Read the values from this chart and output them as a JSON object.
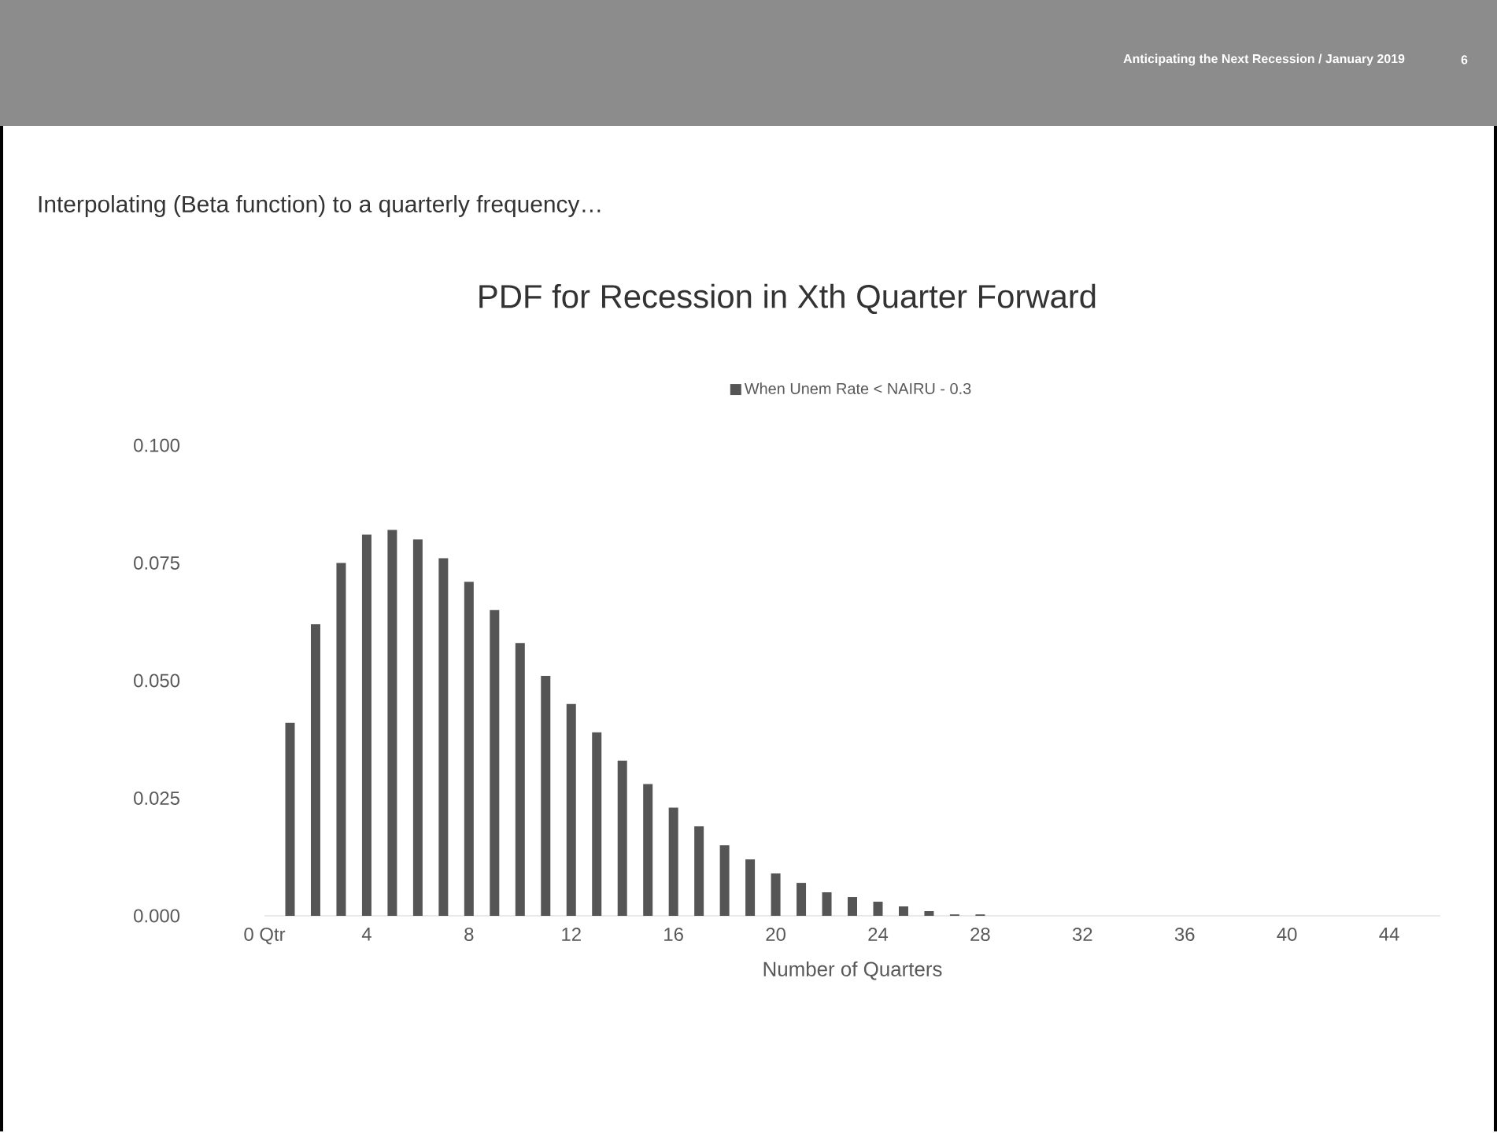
{
  "chart_data": {
    "type": "bar",
    "title": "PDF for Recession in Xth Quarter Forward",
    "subtitle": "Interpolating (Beta function) to a quarterly frequency…",
    "annotations": [
      "Anticipating the Next Recession / January 2019",
      "6"
    ],
    "xlabel": "Number of Quarters",
    "x": [
      1,
      2,
      3,
      4,
      5,
      6,
      7,
      8,
      9,
      10,
      11,
      12,
      13,
      14,
      15,
      16,
      17,
      18,
      19,
      20,
      21,
      22,
      23,
      24,
      25,
      26,
      27,
      28
    ],
    "series": [
      {
        "name": "When Unem Rate < NAIRU - 0.3",
        "color": "#555555",
        "values": [
          0.041,
          0.062,
          0.075,
          0.081,
          0.082,
          0.08,
          0.076,
          0.071,
          0.065,
          0.058,
          0.051,
          0.045,
          0.039,
          0.033,
          0.028,
          0.023,
          0.019,
          0.015,
          0.012,
          0.009,
          0.007,
          0.005,
          0.004,
          0.003,
          0.002,
          0.001,
          0.0003,
          0.0003
        ]
      }
    ],
    "xlim": [
      0,
      46
    ],
    "ylim": [
      0,
      0.1
    ],
    "xticks": [
      {
        "value": 0,
        "label": "0 Qtr"
      },
      4,
      8,
      12,
      16,
      20,
      24,
      28,
      32,
      36,
      40,
      44
    ],
    "yticks": [
      {
        "value": 0,
        "label": "0.000"
      },
      {
        "value": 0.025,
        "label": "0.025"
      },
      {
        "value": 0.05,
        "label": "0.050"
      },
      {
        "value": 0.075,
        "label": "0.075"
      },
      {
        "value": 0.1,
        "label": "0.100"
      }
    ],
    "legend": "top"
  }
}
